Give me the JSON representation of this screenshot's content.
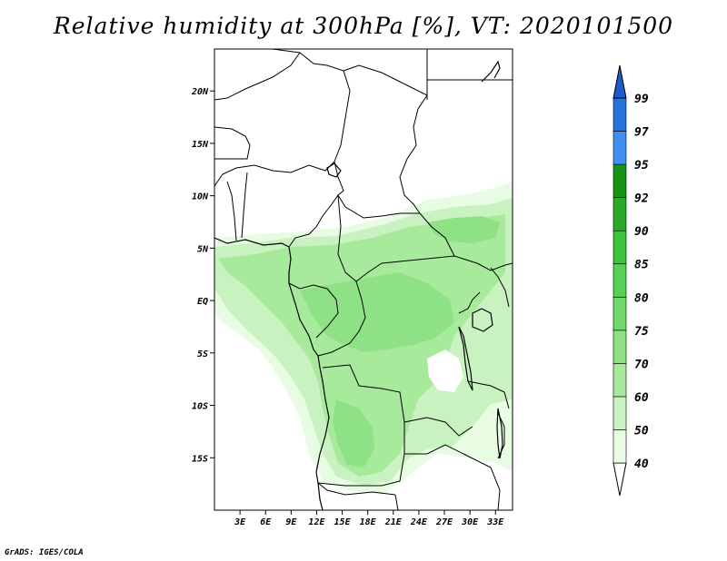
{
  "title": "Relative humidity at 300hPa [%], VT: 2020101500",
  "credit": "GrADS: IGES/COLA",
  "map": {
    "variable": "Relative humidity",
    "level": "300hPa",
    "units": "%",
    "valid_time": "2020101500",
    "lon_range": [
      0,
      35
    ],
    "lat_range": [
      -20,
      24
    ],
    "lat_ticks": [
      {
        "value": 20,
        "label": "20N"
      },
      {
        "value": 15,
        "label": "15N"
      },
      {
        "value": 10,
        "label": "10N"
      },
      {
        "value": 5,
        "label": "5N"
      },
      {
        "value": 0,
        "label": "EQ"
      },
      {
        "value": -5,
        "label": "5S"
      },
      {
        "value": -10,
        "label": "10S"
      },
      {
        "value": -15,
        "label": "15S"
      }
    ],
    "lon_ticks": [
      {
        "value": 3,
        "label": "3E"
      },
      {
        "value": 6,
        "label": "6E"
      },
      {
        "value": 9,
        "label": "9E"
      },
      {
        "value": 12,
        "label": "12E"
      },
      {
        "value": 15,
        "label": "15E"
      },
      {
        "value": 18,
        "label": "18E"
      },
      {
        "value": 21,
        "label": "21E"
      },
      {
        "value": 24,
        "label": "24E"
      },
      {
        "value": 27,
        "label": "27E"
      },
      {
        "value": 30,
        "label": "30E"
      },
      {
        "value": 33,
        "label": "33E"
      }
    ]
  },
  "colorbar": {
    "levels": [
      "40",
      "50",
      "60",
      "70",
      "75",
      "80",
      "85",
      "90",
      "92",
      "95",
      "97",
      "99"
    ],
    "colors": [
      "#e8fce4",
      "#c8f2c0",
      "#a8ea9c",
      "#8ee285",
      "#6fda6b",
      "#55d155",
      "#3bc43b",
      "#2aaa2a",
      "#169416",
      "#3e8ff0",
      "#2673e0",
      "#1a5ccc"
    ],
    "low_color": "#ffffff",
    "high_color": "#1a5ccc"
  },
  "colors": {
    "land_green_light": "#c8f2c0",
    "land_green_mid": "#a8ea9c",
    "land_green_dark": "#8ee285",
    "border": "#000000"
  }
}
